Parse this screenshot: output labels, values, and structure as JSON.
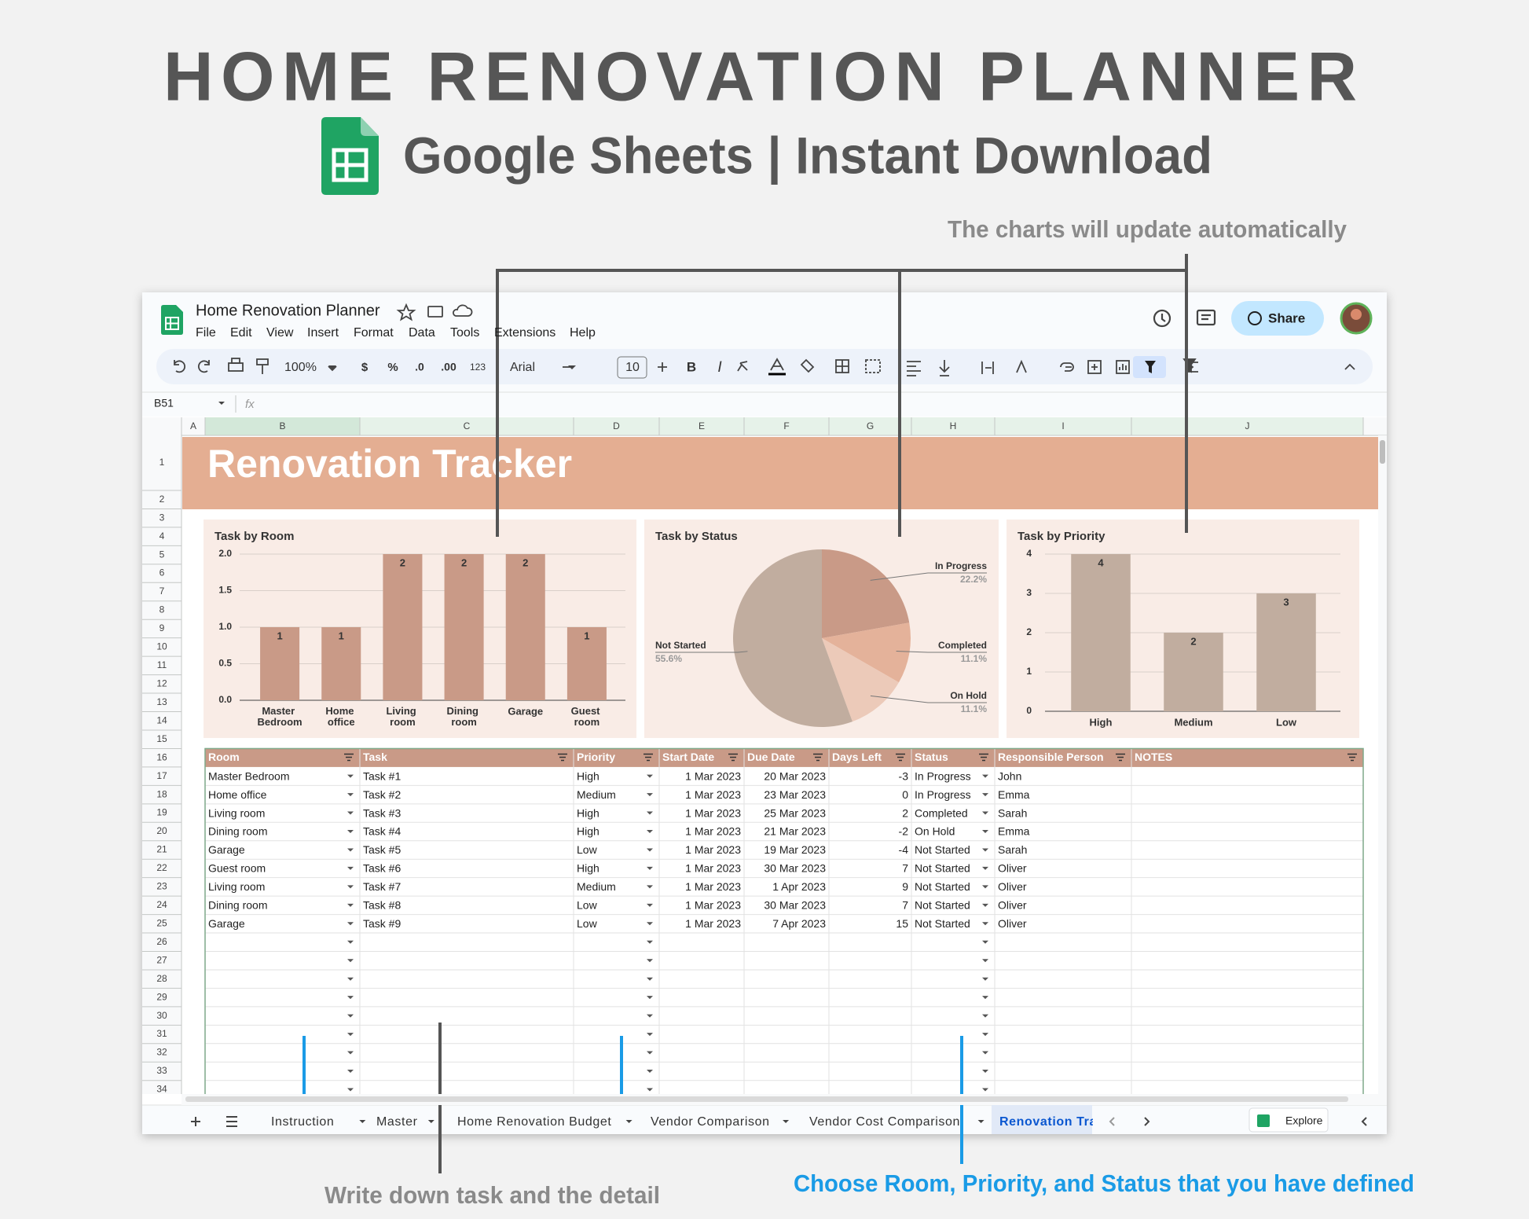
{
  "header": {
    "title": "HOME RENOVATION PLANNER",
    "subtitle": "Google Sheets | Instant Download"
  },
  "annotations": {
    "charts_note": "The charts will update automatically",
    "task_note": "Write down task and the detail",
    "choose_note": "Choose Room, Priority, and Status that you have defined"
  },
  "app": {
    "doc_title": "Home Renovation Planner",
    "menu": [
      "File",
      "Edit",
      "View",
      "Insert",
      "Format",
      "Data",
      "Tools",
      "Extensions",
      "Help"
    ],
    "share": "Share",
    "toolbar": [
      "100%",
      "$",
      "%",
      ".0",
      ".00",
      "123",
      "Arial",
      "10",
      "B",
      "I"
    ],
    "cell_ref": "B51",
    "fx": "fx",
    "columns": [
      "A",
      "B",
      "C",
      "D",
      "E",
      "F",
      "G",
      "H",
      "I",
      "J"
    ],
    "row_numbers": [
      1,
      2,
      3,
      4,
      5,
      6,
      7,
      8,
      9,
      10,
      11,
      12,
      13,
      14,
      15,
      16,
      17,
      18,
      19,
      20,
      21,
      22,
      23,
      24,
      25,
      26,
      27,
      28,
      29,
      30,
      31,
      32,
      33,
      34
    ],
    "sheet_title": "Renovation Tracker",
    "tabs": [
      "Instruction",
      "Master",
      "Home Renovation Budget",
      "Vendor Comparison",
      "Vendor Cost Comparison",
      "Renovation Tra"
    ],
    "explore": "Explore"
  },
  "table": {
    "headers": [
      "Room",
      "Task",
      "Priority",
      "Start Date",
      "Due Date",
      "Days Left",
      "Status",
      "Responsible Person",
      "NOTES"
    ],
    "rows": [
      [
        "Master Bedroom",
        "Task #1",
        "High",
        "1 Mar 2023",
        "20 Mar 2023",
        -3,
        "In Progress",
        "John"
      ],
      [
        "Home office",
        "Task #2",
        "Medium",
        "1 Mar 2023",
        "23 Mar 2023",
        0,
        "In Progress",
        "Emma"
      ],
      [
        "Living room",
        "Task #3",
        "High",
        "1 Mar 2023",
        "25 Mar 2023",
        2,
        "Completed",
        "Sarah"
      ],
      [
        "Dining room",
        "Task #4",
        "High",
        "1 Mar 2023",
        "21 Mar 2023",
        -2,
        "On Hold",
        "Emma"
      ],
      [
        "Garage",
        "Task #5",
        "Low",
        "1 Mar 2023",
        "19 Mar 2023",
        -4,
        "Not Started",
        "Sarah"
      ],
      [
        "Guest room",
        "Task #6",
        "High",
        "1 Mar 2023",
        "30 Mar 2023",
        7,
        "Not Started",
        "Oliver"
      ],
      [
        "Living room",
        "Task #7",
        "Medium",
        "1 Mar 2023",
        "1 Apr 2023",
        9,
        "Not Started",
        "Oliver"
      ],
      [
        "Dining room",
        "Task #8",
        "Low",
        "1 Mar 2023",
        "30 Mar 2023",
        7,
        "Not Started",
        "Oliver"
      ],
      [
        "Garage",
        "Task #9",
        "Low",
        "1 Mar 2023",
        "7 Apr 2023",
        15,
        "Not Started",
        "Oliver"
      ]
    ]
  },
  "chart_data": [
    {
      "type": "bar",
      "title": "Task by Room",
      "categories": [
        "Master Bedroom",
        "Home office",
        "Living room",
        "Dining room",
        "Garage",
        "Guest room"
      ],
      "values": [
        1,
        1,
        2,
        2,
        2,
        1
      ],
      "color": "#c99a87",
      "ylim": [
        0,
        2
      ],
      "yticks": [
        {
          "value": 0,
          "label": "0.0"
        },
        {
          "value": 0.5,
          "label": "0.5"
        },
        {
          "value": 1,
          "label": "1.0"
        },
        {
          "value": 1.5,
          "label": "1.5"
        },
        {
          "value": 2,
          "label": "2.0"
        }
      ],
      "grid": true
    },
    {
      "type": "pie",
      "title": "Task by Status",
      "categories": [
        "In Progress",
        "Completed",
        "On Hold",
        "Not Started"
      ],
      "values": [
        22.2,
        11.1,
        11.1,
        55.6
      ],
      "value_labels": [
        "22.2%",
        "11.1%",
        "11.1%",
        "55.6%"
      ],
      "colors": [
        "#c99a87",
        "#e4b29a",
        "#eccab9",
        "#c1ad9f"
      ]
    },
    {
      "type": "bar",
      "title": "Task by Priority",
      "categories": [
        "High",
        "Medium",
        "Low"
      ],
      "values": [
        4,
        2,
        3
      ],
      "color": "#c1ad9f",
      "ylim": [
        0,
        4
      ],
      "yticks": [
        0,
        1,
        2,
        3,
        4
      ],
      "grid": true
    }
  ]
}
